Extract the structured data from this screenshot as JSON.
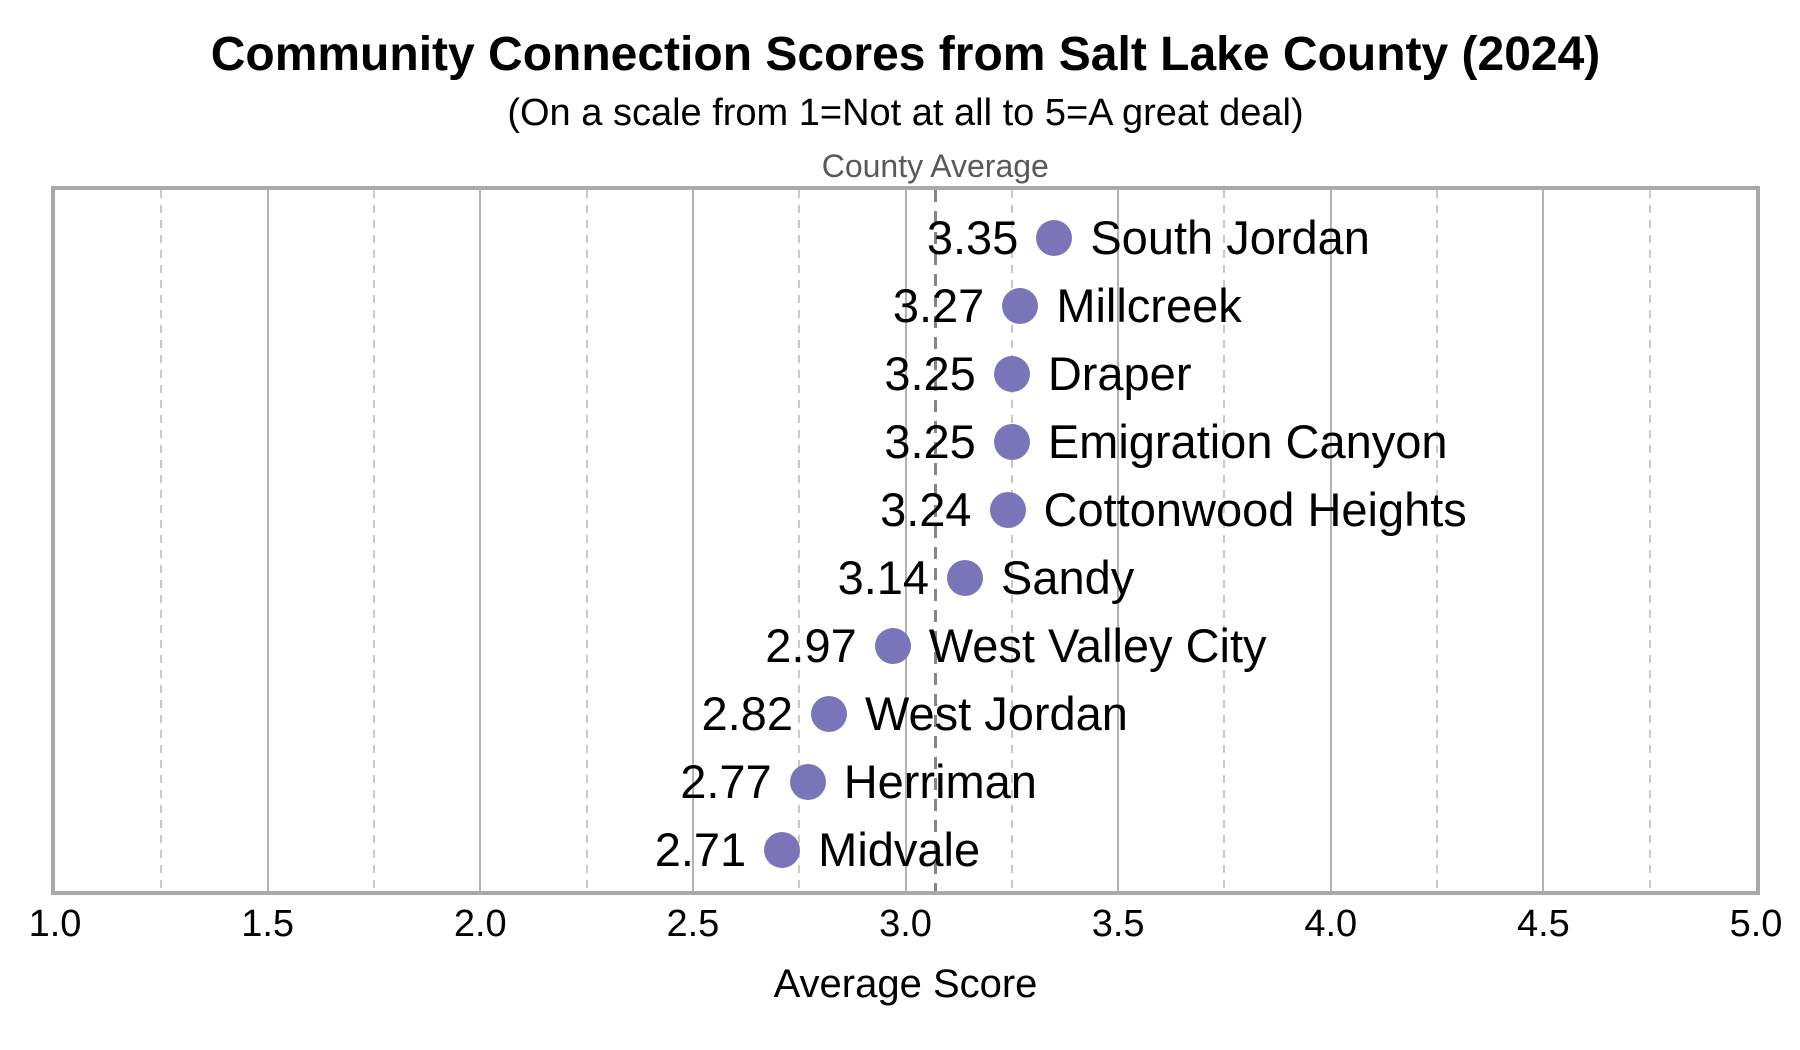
{
  "header": {
    "title": "Community Connection Scores from Salt Lake County (2024)",
    "subtitle": "(On a scale from 1=Not at all to 5=A great deal)"
  },
  "chart_data": {
    "type": "scatter",
    "variant": "horizontal-dot-plot",
    "title": "Community Connection Scores from Salt Lake County (2024)",
    "subtitle": "(On a scale from 1=Not at all to 5=A great deal)",
    "xlabel": "Average Score",
    "ylabel": "",
    "xlim": [
      1.0,
      5.0
    ],
    "xticks": [
      1.0,
      1.5,
      2.0,
      2.5,
      3.0,
      3.5,
      4.0,
      4.5,
      5.0
    ],
    "x_major_grid_step": 0.5,
    "x_minor_grid_step": 0.25,
    "grid": "vertical only, solid major + dashed minor",
    "legend": "none",
    "value_label_decimals": 2,
    "categories": [
      "South Jordan",
      "Millcreek",
      "Draper",
      "Emigration Canyon",
      "Cottonwood Heights",
      "Sandy",
      "West Valley City",
      "West Jordan",
      "Herriman",
      "Midvale"
    ],
    "values": [
      3.35,
      3.27,
      3.25,
      3.25,
      3.24,
      3.14,
      2.97,
      2.82,
      2.77,
      2.71
    ],
    "reference_line": {
      "label": "County Average",
      "value": 3.07,
      "style": "dashed",
      "color": "#858585"
    },
    "colors": {
      "dot": "#7a75b8",
      "major_grid": "#b3b3b3",
      "minor_grid": "#c9c9c9",
      "plot_border": "#a9a9a9",
      "reference_label_text": "#595959",
      "text": "#000000"
    }
  }
}
